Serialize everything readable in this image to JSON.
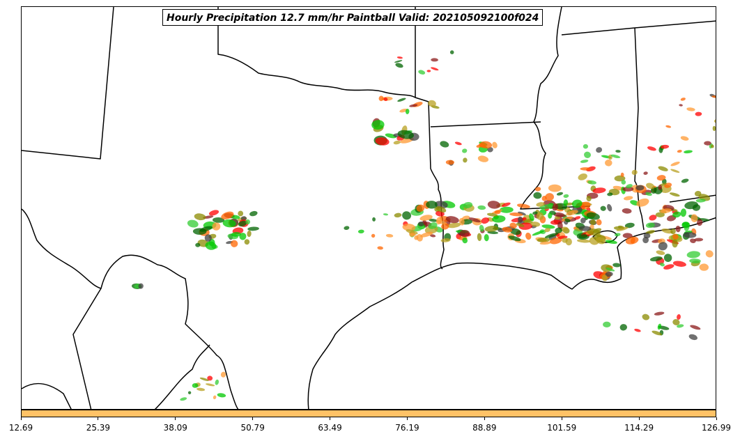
{
  "map": {
    "title": "Hourly Precipitation 12.7 mm/hr Paintball Valid: 202105092100f024"
  },
  "colors": {
    "member_palette": [
      "#ff9933",
      "#ff0000",
      "#8b1a1a",
      "#8b8b00",
      "#00c800",
      "#404040",
      "#ff6600",
      "#b8a020",
      "#006400",
      "#33cc33"
    ],
    "border_lines": "#000000",
    "colorbar_fill": "#ffc266"
  },
  "colorbar": {
    "ticks": [
      "12.69",
      "25.39",
      "38.09",
      "50.79",
      "63.49",
      "76.19",
      "88.89",
      "101.59",
      "114.29",
      "126.99"
    ]
  }
}
